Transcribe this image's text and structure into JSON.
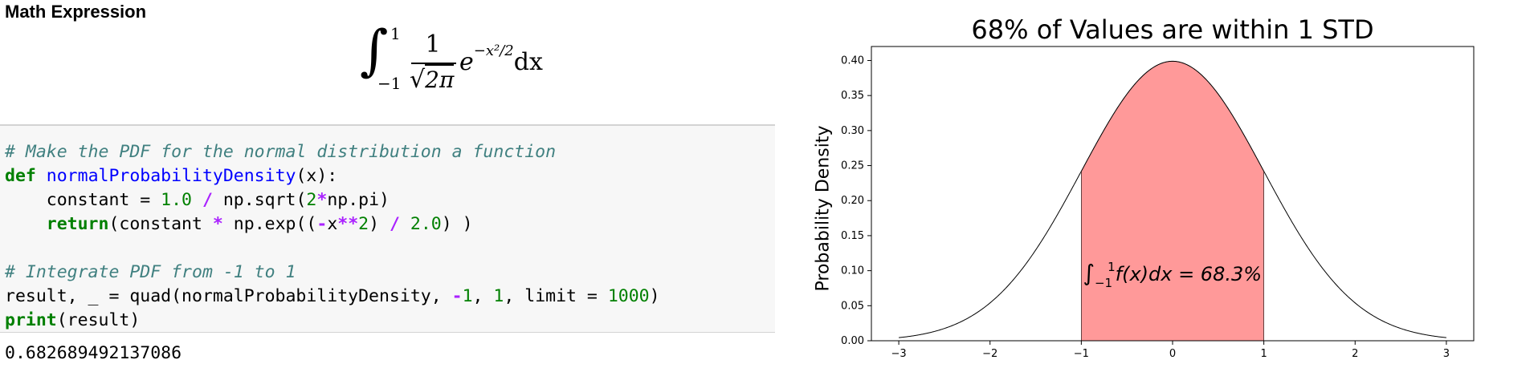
{
  "notebook": {
    "section_title": "Math Expression",
    "formula": {
      "integral_sign": "∫",
      "upper_limit": "1",
      "lower_limit": "−1",
      "numerator": "1",
      "denominator_radical": "√",
      "denominator_arg": "2π",
      "base": "e",
      "exponent": "−x²/2",
      "differential": "dx"
    },
    "code_lines": [
      [
        {
          "t": "# Make the PDF for the normal distribution a function",
          "c": "cm"
        }
      ],
      [
        {
          "t": "def",
          "c": "kw"
        },
        {
          "t": " ",
          "c": ""
        },
        {
          "t": "normalProbabilityDensity",
          "c": "fn"
        },
        {
          "t": "(x):",
          "c": ""
        }
      ],
      [
        {
          "t": "    constant = ",
          "c": ""
        },
        {
          "t": "1.0",
          "c": "nm"
        },
        {
          "t": " ",
          "c": ""
        },
        {
          "t": "/",
          "c": "op"
        },
        {
          "t": " np.sqrt(",
          "c": ""
        },
        {
          "t": "2",
          "c": "nm"
        },
        {
          "t": "*",
          "c": "op"
        },
        {
          "t": "np.pi)",
          "c": ""
        }
      ],
      [
        {
          "t": "    ",
          "c": ""
        },
        {
          "t": "return",
          "c": "kw"
        },
        {
          "t": "(constant ",
          "c": ""
        },
        {
          "t": "*",
          "c": "op"
        },
        {
          "t": " np.exp((",
          "c": ""
        },
        {
          "t": "-",
          "c": "op"
        },
        {
          "t": "x",
          "c": ""
        },
        {
          "t": "**",
          "c": "op"
        },
        {
          "t": "2",
          "c": "nm"
        },
        {
          "t": ") ",
          "c": ""
        },
        {
          "t": "/",
          "c": "op"
        },
        {
          "t": " ",
          "c": ""
        },
        {
          "t": "2.0",
          "c": "nm"
        },
        {
          "t": ") )",
          "c": ""
        }
      ],
      [
        {
          "t": " ",
          "c": ""
        }
      ],
      [
        {
          "t": "# Integrate PDF from -1 to 1",
          "c": "cm"
        }
      ],
      [
        {
          "t": "result, _ = quad(normalProbabilityDensity, ",
          "c": ""
        },
        {
          "t": "-",
          "c": "op"
        },
        {
          "t": "1",
          "c": "nm"
        },
        {
          "t": ", ",
          "c": ""
        },
        {
          "t": "1",
          "c": "nm"
        },
        {
          "t": ", limit = ",
          "c": ""
        },
        {
          "t": "1000",
          "c": "nm"
        },
        {
          "t": ")",
          "c": ""
        }
      ],
      [
        {
          "t": "print",
          "c": "kw"
        },
        {
          "t": "(result)",
          "c": ""
        }
      ]
    ],
    "output": "0.682689492137086"
  },
  "chart_data": {
    "type": "area",
    "title": "68% of Values are within 1 STD",
    "xlabel": "",
    "ylabel": "Probability Density",
    "xlim": [
      -3.3,
      3.3
    ],
    "ylim": [
      0,
      0.42
    ],
    "x_ticks": [
      -3,
      -2,
      -1,
      0,
      1,
      2,
      3
    ],
    "x_tick_labels": [
      "−3",
      "−2",
      "−1",
      "0",
      "1",
      "2",
      "3"
    ],
    "y_ticks": [
      0.0,
      0.05,
      0.1,
      0.15,
      0.2,
      0.25,
      0.3,
      0.35,
      0.4
    ],
    "y_tick_labels": [
      "0.00",
      "0.05",
      "0.10",
      "0.15",
      "0.20",
      "0.25",
      "0.30",
      "0.35",
      "0.40"
    ],
    "curve": {
      "function": "normal pdf, mean 0, std 1",
      "x_range": [
        -3,
        3
      ],
      "color": "#000000"
    },
    "shaded_region": {
      "x_from": -1,
      "x_to": 1,
      "color": "#ff9999"
    },
    "annotation": {
      "integral": "∫",
      "lower": "−1",
      "upper": "1",
      "body": "f(x)dx = 68.3%"
    },
    "grid": false
  }
}
